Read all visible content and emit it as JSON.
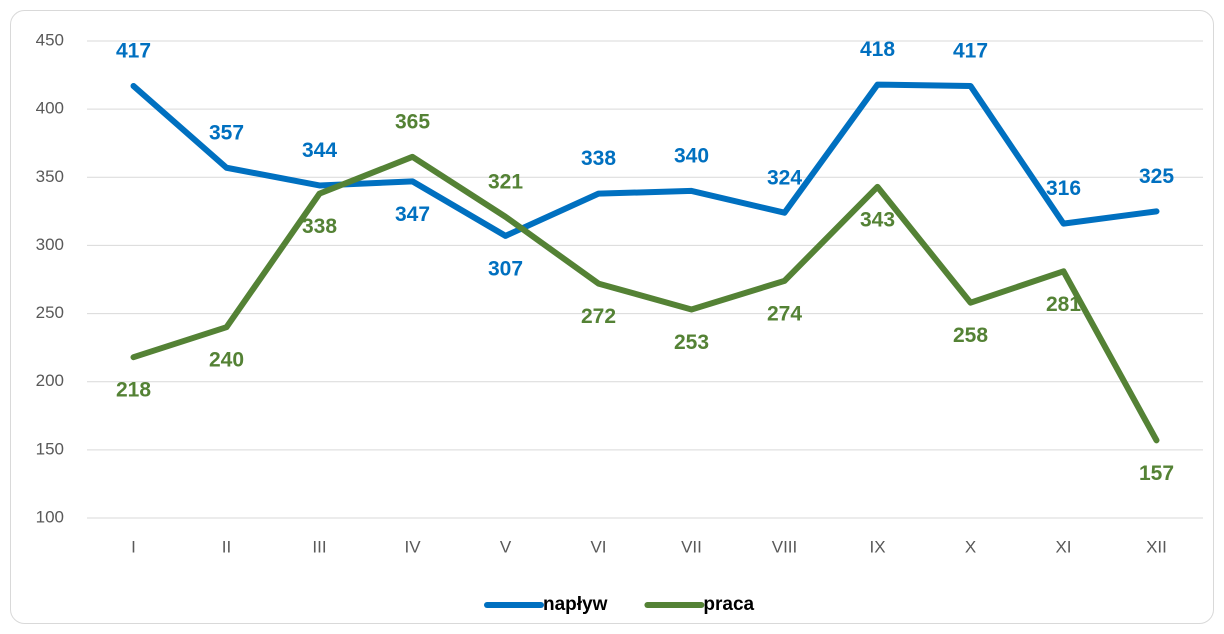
{
  "chart_data": {
    "type": "line",
    "categories": [
      "I",
      "II",
      "III",
      "IV",
      "V",
      "VI",
      "VII",
      "VIII",
      "IX",
      "X",
      "XI",
      "XII"
    ],
    "series": [
      {
        "name": "napływ",
        "color": "#0070c0",
        "values": [
          417,
          357,
          344,
          347,
          307,
          338,
          340,
          324,
          418,
          417,
          316,
          325
        ]
      },
      {
        "name": "praca",
        "color": "#548235",
        "values": [
          218,
          240,
          338,
          365,
          321,
          272,
          253,
          274,
          343,
          258,
          281,
          157
        ]
      }
    ],
    "ylim": [
      100,
      450
    ],
    "yticks": [
      100,
      150,
      200,
      250,
      300,
      350,
      400,
      450
    ],
    "grid": true,
    "legend": "bottom"
  }
}
